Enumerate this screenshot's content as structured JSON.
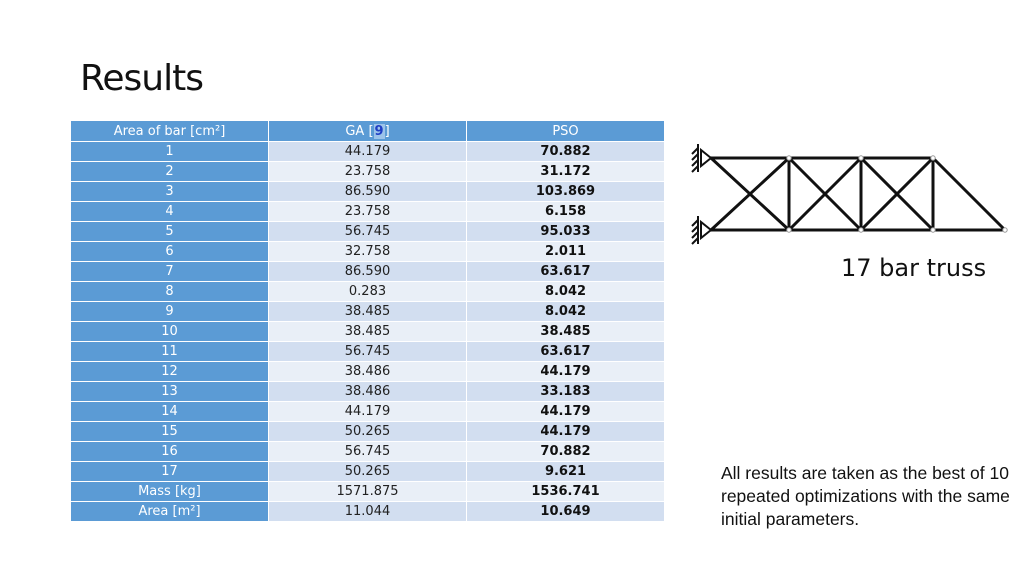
{
  "slide": {
    "title": "Results",
    "table": {
      "headers": {
        "col1": "Area of bar [cm²]",
        "col2_prefix": "GA [",
        "col2_ref": "9",
        "col2_suffix": "]",
        "col3": "PSO"
      },
      "rows": [
        {
          "label": "1",
          "ga": "44.179",
          "pso": "70.882"
        },
        {
          "label": "2",
          "ga": "23.758",
          "pso": "31.172"
        },
        {
          "label": "3",
          "ga": "86.590",
          "pso": "103.869"
        },
        {
          "label": "4",
          "ga": "23.758",
          "pso": "6.158"
        },
        {
          "label": "5",
          "ga": "56.745",
          "pso": "95.033"
        },
        {
          "label": "6",
          "ga": "32.758",
          "pso": "2.011"
        },
        {
          "label": "7",
          "ga": "86.590",
          "pso": "63.617"
        },
        {
          "label": "8",
          "ga": "0.283",
          "pso": "8.042"
        },
        {
          "label": "9",
          "ga": "38.485",
          "pso": "8.042"
        },
        {
          "label": "10",
          "ga": "38.485",
          "pso": "38.485"
        },
        {
          "label": "11",
          "ga": "56.745",
          "pso": "63.617"
        },
        {
          "label": "12",
          "ga": "38.486",
          "pso": "44.179"
        },
        {
          "label": "13",
          "ga": "38.486",
          "pso": "33.183"
        },
        {
          "label": "14",
          "ga": "44.179",
          "pso": "44.179"
        },
        {
          "label": "15",
          "ga": "50.265",
          "pso": "44.179"
        },
        {
          "label": "16",
          "ga": "56.745",
          "pso": "70.882"
        },
        {
          "label": "17",
          "ga": "50.265",
          "pso": "9.621"
        },
        {
          "label": "Mass [kg]",
          "ga": "1571.875",
          "pso": "1536.741"
        },
        {
          "label": "Area [m²]",
          "ga": "11.044",
          "pso": "10.649"
        }
      ]
    },
    "truss_caption": "17 bar truss",
    "note": "All results are taken as the best of 10 repeated optimizations with the same initial parameters."
  },
  "colors": {
    "header_blue": "#5b9bd5",
    "row_odd": "#d2def0",
    "row_even": "#e9eff7",
    "truss_line": "#111111"
  },
  "icons": {
    "support_left_top": "pin-support-icon",
    "support_left_bottom": "pin-support-icon"
  }
}
